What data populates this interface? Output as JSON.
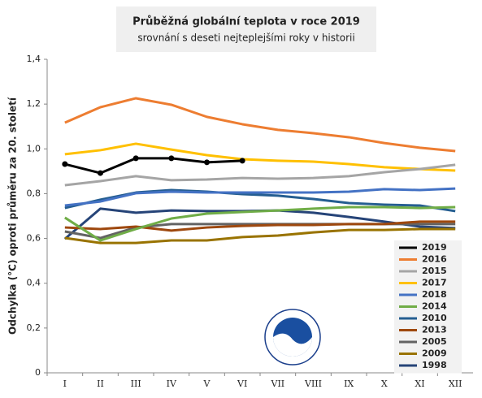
{
  "chart_data": {
    "type": "line",
    "title": "Průběžná globální teplota v roce 2019",
    "subtitle": "srovnání s deseti nejteplejšími roky v historii",
    "y_label": "Odchylka (°C) oproti průměru za 20. století",
    "categories": [
      "I",
      "II",
      "III",
      "IV",
      "V",
      "VI",
      "VII",
      "VIII",
      "IX",
      "X",
      "XI",
      "XII"
    ],
    "ylim": [
      0,
      1.4
    ],
    "yticks": [
      0,
      {
        "value": 0.2,
        "label": "0,2"
      },
      {
        "value": 0.4,
        "label": "0,4"
      },
      {
        "value": 0.6,
        "label": "0,6"
      },
      {
        "value": 0.8,
        "label": "0,8"
      },
      {
        "value": 1.0,
        "label": "1,0"
      },
      {
        "value": 1.2,
        "label": "1,2"
      },
      {
        "value": 1.4,
        "label": "1,4"
      }
    ],
    "grid": false,
    "legend": "lower right",
    "series": [
      {
        "name": "2019",
        "color": "#000000",
        "marker": true,
        "values": [
          0.932,
          0.892,
          0.958,
          0.958,
          0.94,
          0.947,
          null,
          null,
          null,
          null,
          null,
          null
        ]
      },
      {
        "name": "2016",
        "color": "#ed7d31",
        "values": [
          1.117,
          1.186,
          1.226,
          1.197,
          1.143,
          1.11,
          1.085,
          1.07,
          1.052,
          1.026,
          1.005,
          0.99
        ]
      },
      {
        "name": "2015",
        "color": "#a5a5a5",
        "values": [
          0.838,
          0.856,
          0.878,
          0.86,
          0.863,
          0.87,
          0.867,
          0.87,
          0.878,
          0.896,
          0.91,
          0.929
        ]
      },
      {
        "name": "2017",
        "color": "#ffc000",
        "values": [
          0.976,
          0.994,
          1.023,
          0.997,
          0.972,
          0.954,
          0.947,
          0.943,
          0.932,
          0.918,
          0.91,
          0.903
        ]
      },
      {
        "name": "2018",
        "color": "#4472c4",
        "values": [
          0.747,
          0.765,
          0.802,
          0.809,
          0.805,
          0.805,
          0.805,
          0.805,
          0.809,
          0.82,
          0.816,
          0.823
        ]
      },
      {
        "name": "2014",
        "color": "#70ad47",
        "values": [
          0.693,
          0.591,
          0.642,
          0.689,
          0.711,
          0.718,
          0.725,
          0.733,
          0.74,
          0.74,
          0.736,
          0.74
        ]
      },
      {
        "name": "2010",
        "color": "#255e91",
        "values": [
          0.736,
          0.773,
          0.805,
          0.816,
          0.809,
          0.798,
          0.791,
          0.776,
          0.758,
          0.751,
          0.747,
          0.722
        ]
      },
      {
        "name": "2013",
        "color": "#9e480e",
        "values": [
          0.649,
          0.642,
          0.653,
          0.635,
          0.649,
          0.656,
          0.66,
          0.66,
          0.664,
          0.664,
          0.675,
          0.675
        ]
      },
      {
        "name": "2005",
        "color": "#636363",
        "values": [
          0.631,
          0.602,
          0.649,
          0.664,
          0.664,
          0.664,
          0.664,
          0.664,
          0.664,
          0.664,
          0.664,
          0.664
        ]
      },
      {
        "name": "2009",
        "color": "#997300",
        "values": [
          0.602,
          0.58,
          0.58,
          0.591,
          0.591,
          0.606,
          0.613,
          0.627,
          0.638,
          0.638,
          0.642,
          0.642
        ]
      },
      {
        "name": "1998",
        "color": "#264478",
        "values": [
          0.598,
          0.733,
          0.715,
          0.725,
          0.722,
          0.722,
          0.725,
          0.715,
          0.696,
          0.675,
          0.653,
          0.646
        ]
      }
    ]
  }
}
